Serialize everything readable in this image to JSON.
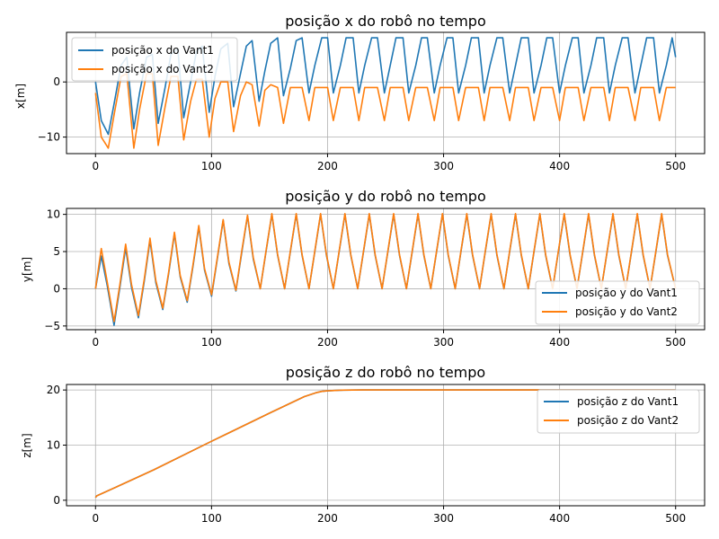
{
  "chart_data": [
    {
      "type": "line",
      "title": "posição x do robô no tempo",
      "xlabel": "",
      "ylabel": "x[m]",
      "xlim": [
        -25,
        525
      ],
      "ylim": [
        -13,
        9
      ],
      "xticks": [
        0,
        100,
        200,
        300,
        400,
        500
      ],
      "xtick_labels": [
        "0",
        "100",
        "200",
        "300",
        "400",
        "500"
      ],
      "yticks": [
        -10,
        0
      ],
      "ytick_labels": [
        "−10",
        "0"
      ],
      "grid": true,
      "legend_position": "upper-left",
      "series": [
        {
          "name": "posição x do Vant1",
          "color": "#1f77b4",
          "x": [
            0,
            5,
            11,
            16,
            22,
            27,
            33,
            38,
            44,
            49,
            54,
            60,
            65,
            71,
            76,
            82,
            87,
            92,
            98,
            103,
            108,
            114,
            119,
            125,
            130,
            135,
            141,
            146,
            151,
            157,
            162,
            168,
            173,
            178,
            184,
            189,
            195,
            200,
            205,
            211,
            216,
            222,
            227,
            232,
            238,
            243,
            249,
            254,
            259,
            265,
            270,
            276,
            281,
            286,
            292,
            297,
            303,
            308,
            313,
            319,
            324,
            330,
            335,
            340,
            346,
            351,
            357,
            362,
            367,
            373,
            378,
            384,
            389,
            394,
            400,
            405,
            411,
            416,
            421,
            427,
            432,
            438,
            443,
            448,
            454,
            459,
            465,
            470,
            475,
            481,
            486,
            492,
            497,
            500
          ],
          "y": [
            0,
            -7,
            -9.5,
            -4,
            3,
            4.5,
            -8.5,
            -2,
            4.5,
            5,
            -7.5,
            -1,
            5,
            6,
            -6.5,
            0,
            5.5,
            6.5,
            -5.5,
            1,
            6,
            7,
            -4.5,
            1.5,
            6.5,
            7.5,
            -3.5,
            2,
            7,
            8,
            -2.5,
            2.5,
            7.5,
            8,
            -2,
            3,
            8,
            8,
            -2,
            3,
            8,
            8,
            -2,
            3,
            8,
            8,
            -2,
            3,
            8,
            8,
            -2,
            3,
            8,
            8,
            -2,
            3,
            8,
            8,
            -2,
            3,
            8,
            8,
            -2,
            3,
            8,
            8,
            -2,
            3,
            8,
            8,
            -2,
            3,
            8,
            8,
            -2,
            3,
            8,
            8,
            -2,
            3,
            8,
            8,
            -2,
            3,
            8,
            8,
            -2,
            3,
            8,
            8,
            -2,
            3,
            8,
            4.5
          ]
        },
        {
          "name": "posição x do Vant2",
          "color": "#ff7f0e",
          "x": [
            0,
            5,
            11,
            16,
            22,
            27,
            33,
            38,
            44,
            49,
            54,
            60,
            65,
            71,
            76,
            82,
            87,
            92,
            98,
            103,
            108,
            114,
            119,
            125,
            130,
            135,
            141,
            146,
            151,
            157,
            162,
            168,
            173,
            178,
            184,
            189,
            195,
            200,
            205,
            211,
            216,
            222,
            227,
            232,
            238,
            243,
            249,
            254,
            259,
            265,
            270,
            276,
            281,
            286,
            292,
            297,
            303,
            308,
            313,
            319,
            324,
            330,
            335,
            340,
            346,
            351,
            357,
            362,
            367,
            373,
            378,
            384,
            389,
            394,
            400,
            405,
            411,
            416,
            421,
            427,
            432,
            438,
            443,
            448,
            454,
            459,
            465,
            470,
            475,
            481,
            486,
            492,
            497,
            500
          ],
          "y": [
            -2,
            -10,
            -12,
            -6,
            1,
            1.5,
            -12,
            -5,
            1.5,
            1.5,
            -11.5,
            -4.5,
            1,
            1,
            -10.5,
            -3.5,
            0.5,
            0.5,
            -10,
            -3,
            0,
            0,
            -9,
            -2.5,
            0,
            -0.5,
            -8,
            -1.5,
            -0.5,
            -1,
            -7.5,
            -1,
            -1,
            -1,
            -7,
            -1,
            -1,
            -1,
            -7,
            -1,
            -1,
            -1,
            -7,
            -1,
            -1,
            -1,
            -7,
            -1,
            -1,
            -1,
            -7,
            -1,
            -1,
            -1,
            -7,
            -1,
            -1,
            -1,
            -7,
            -1,
            -1,
            -1,
            -7,
            -1,
            -1,
            -1,
            -7,
            -1,
            -1,
            -1,
            -7,
            -1,
            -1,
            -1,
            -7,
            -1,
            -1,
            -1,
            -7,
            -1,
            -1,
            -1,
            -7,
            -1,
            -1,
            -1,
            -7,
            -1,
            -1,
            -1,
            -7,
            -1,
            -1,
            -1
          ]
        }
      ]
    },
    {
      "type": "line",
      "title": "posição y do robô no tempo",
      "xlabel": "",
      "ylabel": "y[m]",
      "xlim": [
        -25,
        525
      ],
      "ylim": [
        -5.5,
        10.8
      ],
      "xticks": [
        0,
        100,
        200,
        300,
        400,
        500
      ],
      "xtick_labels": [
        "0",
        "100",
        "200",
        "300",
        "400",
        "500"
      ],
      "yticks": [
        -5,
        0,
        5,
        10
      ],
      "ytick_labels": [
        "−5",
        "0",
        "5",
        "10"
      ],
      "grid": true,
      "legend_position": "lower-right",
      "series": [
        {
          "name": "posição y do Vant1",
          "color": "#1f77b4",
          "x": [
            0,
            5,
            10,
            16,
            21,
            26,
            31,
            37,
            42,
            47,
            52,
            58,
            63,
            68,
            73,
            79,
            84,
            89,
            94,
            100,
            105,
            110,
            115,
            121,
            126,
            131,
            136,
            142,
            147,
            152,
            157,
            163,
            168,
            173,
            178,
            184,
            189,
            194,
            199,
            205,
            210,
            215,
            220,
            226,
            231,
            236,
            241,
            247,
            252,
            257,
            262,
            268,
            273,
            278,
            283,
            289,
            294,
            299,
            304,
            310,
            315,
            320,
            325,
            331,
            336,
            341,
            346,
            352,
            357,
            362,
            367,
            373,
            378,
            383,
            388,
            394,
            399,
            404,
            409,
            415,
            420,
            425,
            430,
            436,
            441,
            446,
            451,
            457,
            462,
            467,
            472,
            478,
            483,
            488,
            493,
            500
          ],
          "y": [
            0,
            4.4,
            0.5,
            -4.9,
            0.2,
            5.5,
            0.2,
            -3.9,
            1,
            6.5,
            0.8,
            -2.8,
            2,
            7.4,
            1.6,
            -1.8,
            3,
            8.3,
            2.5,
            -1,
            4,
            9.2,
            3.4,
            -0.3,
            4.8,
            9.8,
            4,
            0,
            5,
            10,
            4.5,
            0,
            5,
            10,
            4.5,
            0,
            5,
            10,
            4.5,
            0,
            5,
            10,
            4.5,
            0,
            5,
            10,
            4.5,
            0,
            5,
            10,
            4.5,
            0,
            5,
            10,
            4.5,
            0,
            5,
            10,
            4.5,
            0,
            5,
            10,
            4.5,
            0,
            5,
            10,
            4.5,
            0,
            5,
            10,
            4.5,
            0,
            5,
            10,
            4.5,
            0,
            5,
            10,
            4.5,
            0,
            5,
            10,
            4.5,
            0,
            5,
            10,
            4.5,
            0,
            5,
            10,
            4.5,
            0,
            5,
            10,
            4.5,
            0
          ]
        },
        {
          "name": "posição y do Vant2",
          "color": "#ff7f0e",
          "x": [
            0,
            5,
            10,
            16,
            21,
            26,
            31,
            37,
            42,
            47,
            52,
            58,
            63,
            68,
            73,
            79,
            84,
            89,
            94,
            100,
            105,
            110,
            115,
            121,
            126,
            131,
            136,
            142,
            147,
            152,
            157,
            163,
            168,
            173,
            178,
            184,
            189,
            194,
            199,
            205,
            210,
            215,
            220,
            226,
            231,
            236,
            241,
            247,
            252,
            257,
            262,
            268,
            273,
            278,
            283,
            289,
            294,
            299,
            304,
            310,
            315,
            320,
            325,
            331,
            336,
            341,
            346,
            352,
            357,
            362,
            367,
            373,
            378,
            383,
            388,
            394,
            399,
            404,
            409,
            415,
            420,
            425,
            430,
            436,
            441,
            446,
            451,
            457,
            462,
            467,
            472,
            478,
            483,
            488,
            493,
            500
          ],
          "y": [
            0,
            5.4,
            1,
            -4.4,
            0.6,
            6,
            0.6,
            -3.6,
            1.3,
            6.8,
            1.1,
            -2.6,
            2.2,
            7.6,
            1.8,
            -1.6,
            3.2,
            8.5,
            2.7,
            -0.8,
            4.2,
            9.3,
            3.6,
            -0.2,
            5,
            9.9,
            4.2,
            0,
            5.1,
            10.1,
            4.6,
            0,
            5.1,
            10.1,
            4.6,
            0,
            5.1,
            10.1,
            4.6,
            0,
            5.1,
            10.1,
            4.6,
            0,
            5.1,
            10.1,
            4.6,
            0,
            5.1,
            10.1,
            4.6,
            0,
            5.1,
            10.1,
            4.6,
            0,
            5.1,
            10.1,
            4.6,
            0,
            5.1,
            10.1,
            4.6,
            0,
            5.1,
            10.1,
            4.6,
            0,
            5.1,
            10.1,
            4.6,
            0,
            5.1,
            10.1,
            4.6,
            0,
            5.1,
            10.1,
            4.6,
            0,
            5.1,
            10.1,
            4.6,
            0,
            5.1,
            10.1,
            4.6,
            0,
            5.1,
            10.1,
            4.6,
            0,
            5.1,
            10.1,
            4.6,
            0
          ]
        }
      ]
    },
    {
      "type": "line",
      "title": "posição z do robô no tempo",
      "xlabel": "",
      "ylabel": "z[m]",
      "xlim": [
        -25,
        525
      ],
      "ylim": [
        -1,
        21
      ],
      "xticks": [
        0,
        100,
        200,
        300,
        400,
        500
      ],
      "xtick_labels": [
        "0",
        "100",
        "200",
        "300",
        "400",
        "500"
      ],
      "yticks": [
        0,
        10,
        20
      ],
      "ytick_labels": [
        "0",
        "10",
        "20"
      ],
      "grid": true,
      "legend_position": "upper-right",
      "series": [
        {
          "name": "posição z do Vant1",
          "color": "#1f77b4",
          "x": [
            0,
            1,
            20,
            50,
            100,
            150,
            180,
            190,
            195,
            200,
            210,
            230,
            260,
            300,
            400,
            500
          ],
          "y": [
            0.5,
            0.8,
            2.6,
            5.5,
            10.7,
            15.8,
            18.8,
            19.5,
            19.75,
            19.85,
            19.95,
            20,
            20,
            20,
            20,
            20
          ]
        },
        {
          "name": "posição z do Vant2",
          "color": "#ff7f0e",
          "x": [
            0,
            1,
            20,
            50,
            100,
            150,
            180,
            190,
            195,
            200,
            210,
            230,
            260,
            300,
            400,
            500
          ],
          "y": [
            0.5,
            0.8,
            2.6,
            5.5,
            10.7,
            15.8,
            18.8,
            19.5,
            19.75,
            19.85,
            19.95,
            20,
            20,
            20,
            20,
            20
          ]
        }
      ]
    }
  ]
}
